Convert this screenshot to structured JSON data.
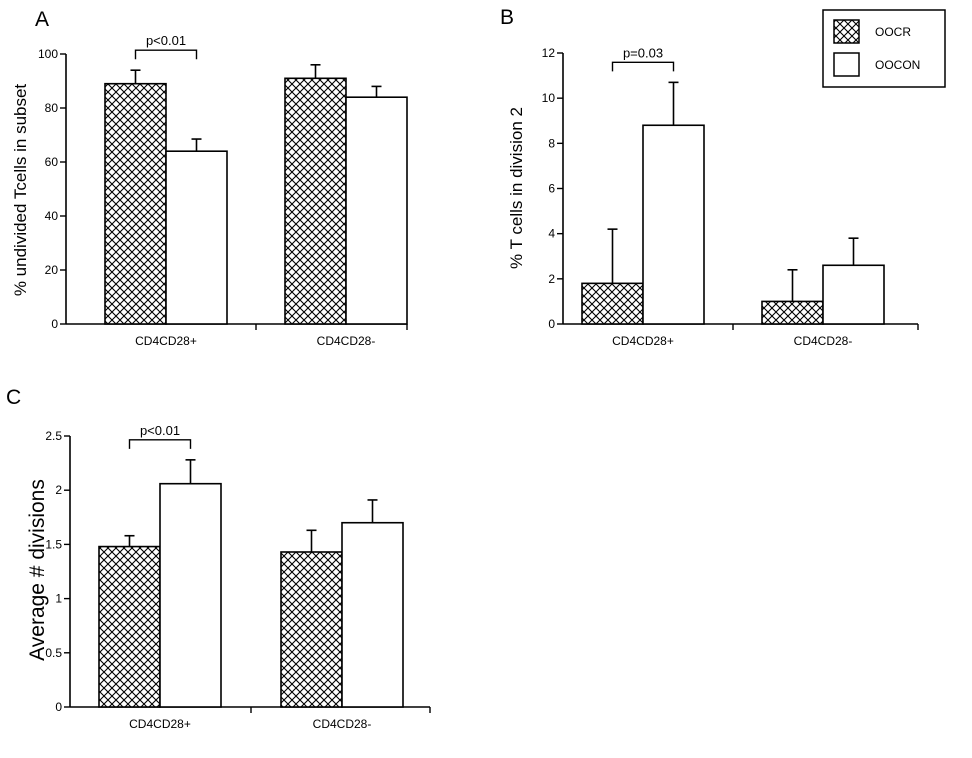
{
  "colors": {
    "oocr_fill": "hatched-crosshatch",
    "oocon_fill": "#ffffff",
    "ink": "#000000"
  },
  "legend": {
    "items": [
      "OOCR",
      "OOCON"
    ],
    "placement": "top-right"
  },
  "chart_data": [
    {
      "panel": "A",
      "type": "bar",
      "ylabel": "% undivided Tcells in subset",
      "ylim": [
        0,
        100
      ],
      "yticks": [
        "0",
        "20",
        "40",
        "60",
        "80",
        "100"
      ],
      "categories": [
        "CD4CD28+",
        "CD4CD28-"
      ],
      "series": [
        {
          "name": "OOCR",
          "values": [
            89,
            91
          ],
          "errors": [
            5,
            5
          ]
        },
        {
          "name": "OOCON",
          "values": [
            64,
            84
          ],
          "errors": [
            4.5,
            4
          ]
        }
      ],
      "annotations": [
        "p<0.01"
      ]
    },
    {
      "panel": "B",
      "type": "bar",
      "ylabel": "% T cells in division 2",
      "ylim": [
        0,
        12
      ],
      "yticks": [
        "0",
        "2",
        "4",
        "6",
        "8",
        "10",
        "12"
      ],
      "categories": [
        "CD4CD28+",
        "CD4CD28-"
      ],
      "series": [
        {
          "name": "OOCR",
          "values": [
            1.8,
            1.0
          ],
          "errors": [
            2.4,
            1.4
          ]
        },
        {
          "name": "OOCON",
          "values": [
            8.8,
            2.6
          ],
          "errors": [
            1.9,
            1.2
          ]
        }
      ],
      "annotations": [
        "p=0.03"
      ]
    },
    {
      "panel": "C",
      "type": "bar",
      "ylabel": "Average # divisions",
      "ylim": [
        0,
        2.5
      ],
      "yticks": [
        "0",
        "0.5",
        "1",
        "1.5",
        "2",
        "2.5"
      ],
      "categories": [
        "CD4CD28+",
        "CD4CD28-"
      ],
      "series": [
        {
          "name": "OOCR",
          "values": [
            1.48,
            1.43
          ],
          "errors": [
            0.1,
            0.2
          ]
        },
        {
          "name": "OOCON",
          "values": [
            2.06,
            1.7
          ],
          "errors": [
            0.22,
            0.21
          ]
        }
      ],
      "annotations": [
        "p<0.01"
      ]
    }
  ]
}
